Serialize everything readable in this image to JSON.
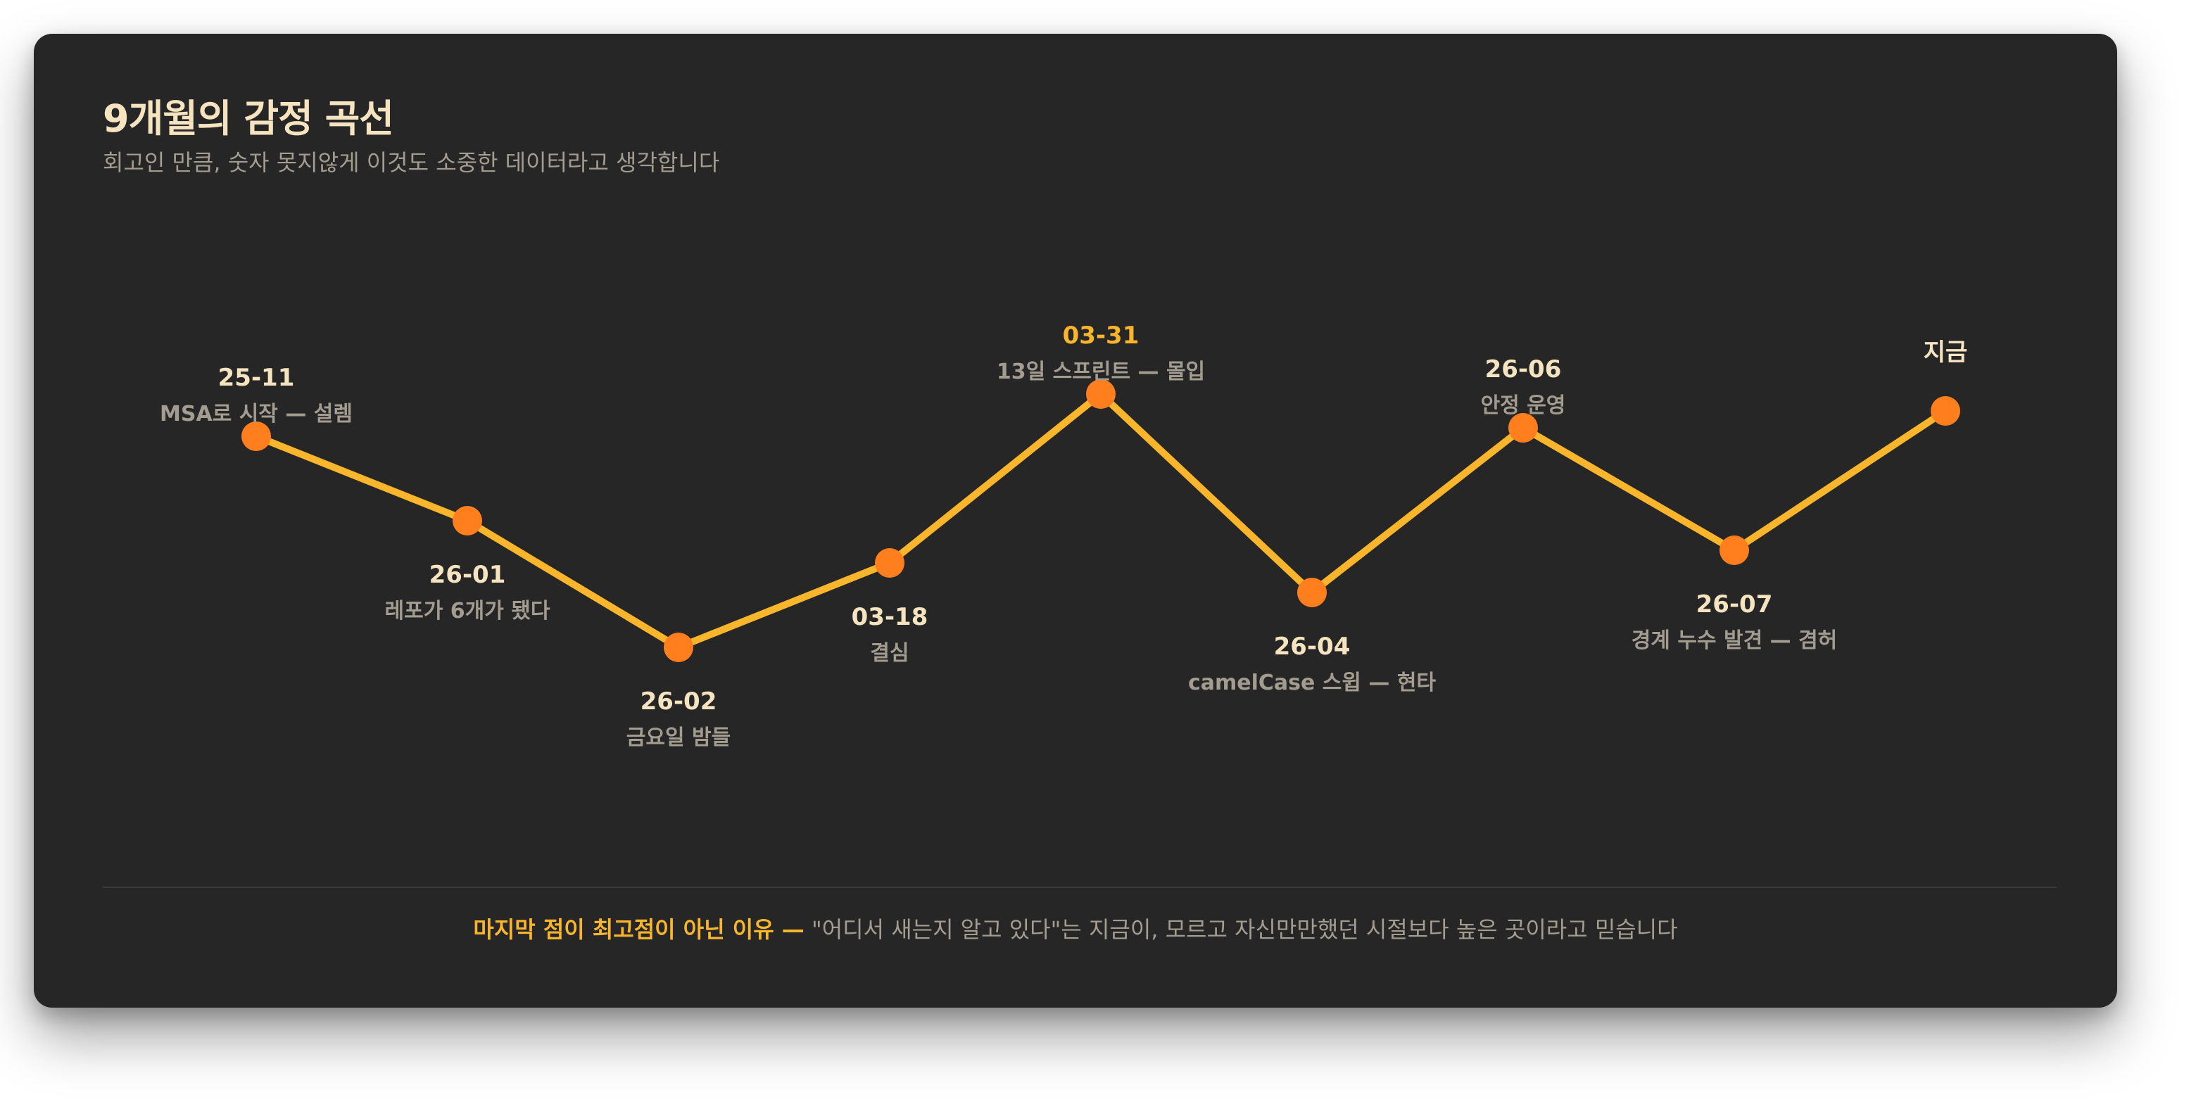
{
  "card": {
    "title": "9개월의 감정 곡선",
    "subtitle": "회고인 만큼, 숫자 못지않게 이것도 소중한 데이터라고 생각합니다"
  },
  "footer": {
    "strong": "마지막 점이 최고점이 아닌 이유 —",
    "text": " \"어디서 새는지 알고 있다\"는 지금이, 모르고 자신만만했던 시절보다 높은 곳이라고 믿습니다"
  },
  "colors": {
    "background": "#262626",
    "line": "#f9b62c",
    "point": "#ff7f1e",
    "highlight_label": "#f9b62c",
    "date_label": "#f6e3bf",
    "caption": "#a39c90"
  },
  "chart_data": {
    "type": "line",
    "title": "9개월의 감정 곡선",
    "subtitle": "회고인 만큼, 숫자 못지않게 이것도 소중한 데이터라고 생각합니다",
    "xlabel": "",
    "ylabel": "",
    "ylim": [
      0,
      10
    ],
    "grid": false,
    "legend": "none",
    "x": [
      "25-11",
      "26-01",
      "26-02",
      "03-18",
      "03-31",
      "26-04",
      "26-06",
      "26-07",
      "지금"
    ],
    "values": [
      7.7,
      5.7,
      2.7,
      4.7,
      8.7,
      4.0,
      7.9,
      5.0,
      8.3
    ],
    "annotations": [
      {
        "date": "25-11",
        "caption": "MSA로 시작 — 설렘",
        "label_side": "above",
        "highlight": false
      },
      {
        "date": "26-01",
        "caption": "레포가 6개가 됐다",
        "label_side": "below",
        "highlight": false
      },
      {
        "date": "26-02",
        "caption": "금요일 밤들",
        "label_side": "below",
        "highlight": false
      },
      {
        "date": "03-18",
        "caption": "결심",
        "label_side": "below",
        "highlight": false
      },
      {
        "date": "03-31",
        "caption": "13일 스프린트 — 몰입",
        "label_side": "above",
        "highlight": true
      },
      {
        "date": "26-04",
        "caption": "camelCase 스윕 — 현타",
        "label_side": "below",
        "highlight": false
      },
      {
        "date": "26-06",
        "caption": "안정 운영",
        "label_side": "above",
        "highlight": false
      },
      {
        "date": "26-07",
        "caption": "경계 누수 발견 — 겸허",
        "label_side": "below",
        "highlight": false
      },
      {
        "date": "지금",
        "caption": "",
        "label_side": "above",
        "highlight": false
      }
    ]
  }
}
